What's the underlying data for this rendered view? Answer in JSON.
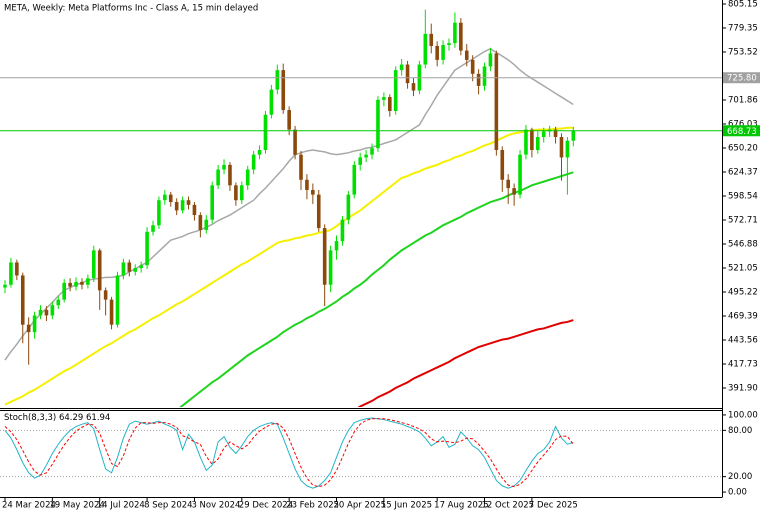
{
  "chart_data": [
    {
      "type": "candlestick",
      "title": "META, Weekly:  Meta Platforms Inc - Class A, 15 min delayed",
      "categories": [
        "24 Mar 2024",
        null,
        null,
        null,
        null,
        null,
        null,
        null,
        "19 May 2024",
        null,
        null,
        null,
        null,
        null,
        null,
        null,
        "14 Jul 2024",
        null,
        null,
        null,
        null,
        null,
        null,
        null,
        "8 Sep 2024",
        null,
        null,
        null,
        null,
        null,
        null,
        null,
        "3 Nov 2024",
        null,
        null,
        null,
        null,
        null,
        null,
        null,
        "29 Dec 2024",
        null,
        null,
        null,
        null,
        null,
        null,
        null,
        "23 Feb 2025",
        null,
        null,
        null,
        null,
        null,
        null,
        null,
        "20 Apr 2025",
        null,
        null,
        null,
        null,
        null,
        null,
        null,
        "15 Jun 2025",
        null,
        null,
        null,
        null,
        null,
        null,
        null,
        null,
        "17 Aug 2025",
        null,
        null,
        null,
        null,
        null,
        null,
        null,
        "12 Oct 2025",
        null,
        null,
        null,
        null,
        null,
        null,
        null,
        "7 Dec 2025",
        null,
        null,
        null,
        null,
        null,
        null,
        null
      ],
      "open": [
        500,
        503,
        527,
        513,
        460,
        452,
        470,
        476,
        470,
        481,
        487,
        505,
        501,
        506,
        503,
        510,
        540,
        497,
        487,
        460,
        513,
        527,
        517,
        521,
        524,
        560,
        567,
        594,
        600,
        592,
        583,
        594,
        589,
        578,
        562,
        573,
        610,
        627,
        632,
        610,
        594,
        610,
        627,
        643,
        648,
        686,
        713,
        734,
        691,
        670,
        643,
        616,
        605,
        600,
        564,
        503,
        540,
        550,
        573,
        600,
        632,
        640,
        643,
        650,
        702,
        705,
        690,
        734,
        740,
        720,
        712,
        740,
        773,
        760,
        745,
        761,
        763,
        785,
        755,
        745,
        730,
        717,
        738,
        752,
        648,
        616,
        607,
        600,
        643,
        670,
        648,
        662,
        668,
        670,
        662,
        640,
        658
      ],
      "high": [
        508,
        532,
        530,
        516,
        468,
        474,
        481,
        480,
        485,
        491,
        509,
        510,
        511,
        510,
        514,
        545,
        542,
        500,
        490,
        517,
        531,
        530,
        525,
        528,
        565,
        572,
        598,
        605,
        603,
        596,
        598,
        598,
        592,
        581,
        578,
        614,
        632,
        638,
        635,
        613,
        614,
        631,
        647,
        653,
        690,
        718,
        740,
        741,
        695,
        674,
        647,
        622,
        612,
        605,
        568,
        545,
        556,
        577,
        604,
        636,
        645,
        648,
        655,
        706,
        710,
        708,
        738,
        746,
        744,
        726,
        744,
        799,
        784,
        765,
        766,
        768,
        796,
        790,
        762,
        750,
        735,
        742,
        758,
        755,
        652,
        622,
        612,
        648,
        675,
        672,
        668,
        672,
        674,
        673,
        666,
        662,
        673
      ],
      "low": [
        494,
        500,
        508,
        440,
        417,
        445,
        466,
        464,
        466,
        477,
        484,
        496,
        497,
        498,
        499,
        506,
        476,
        470,
        455,
        457,
        509,
        512,
        513,
        516,
        520,
        556,
        563,
        589,
        587,
        578,
        580,
        584,
        572,
        554,
        558,
        569,
        606,
        622,
        604,
        588,
        590,
        605,
        622,
        638,
        644,
        682,
        708,
        687,
        664,
        638,
        605,
        595,
        590,
        560,
        480,
        495,
        530,
        545,
        568,
        596,
        626,
        635,
        638,
        646,
        695,
        684,
        686,
        728,
        714,
        706,
        708,
        736,
        752,
        738,
        740,
        755,
        758,
        750,
        738,
        722,
        708,
        712,
        733,
        642,
        603,
        590,
        588,
        596,
        638,
        640,
        644,
        656,
        662,
        655,
        615,
        600,
        652
      ],
      "close": [
        503,
        527,
        513,
        460,
        452,
        470,
        476,
        470,
        481,
        487,
        505,
        501,
        506,
        503,
        510,
        540,
        497,
        487,
        460,
        513,
        527,
        517,
        521,
        524,
        560,
        567,
        594,
        600,
        592,
        583,
        594,
        589,
        578,
        562,
        573,
        610,
        627,
        632,
        610,
        594,
        610,
        627,
        643,
        648,
        686,
        713,
        734,
        691,
        670,
        643,
        616,
        605,
        600,
        564,
        503,
        540,
        550,
        573,
        600,
        632,
        640,
        643,
        650,
        702,
        705,
        690,
        734,
        740,
        720,
        712,
        740,
        773,
        760,
        745,
        761,
        763,
        785,
        755,
        745,
        730,
        717,
        738,
        752,
        648,
        616,
        607,
        600,
        643,
        670,
        648,
        662,
        668,
        670,
        662,
        640,
        658,
        668.73
      ],
      "up_color": "#00e000",
      "down_color": "#8b4a0c",
      "overlays": [
        {
          "color": "#a8a8a8",
          "values": [
            422,
            431,
            439,
            448,
            456,
            465,
            471,
            478,
            484,
            491,
            497,
            500,
            503,
            505,
            508,
            509,
            510,
            511,
            511,
            512,
            513,
            517,
            520,
            524,
            527,
            533,
            539,
            545,
            551,
            553,
            555,
            558,
            560,
            562,
            565,
            568,
            572,
            575,
            578,
            582,
            586,
            590,
            594,
            601,
            607,
            614,
            621,
            628,
            636,
            643,
            645,
            647,
            648,
            647,
            646,
            644,
            643,
            644,
            645,
            647,
            648,
            650,
            651,
            653,
            655,
            657,
            659,
            663,
            667,
            671,
            675,
            686,
            696,
            707,
            716,
            725,
            734,
            738,
            742,
            746,
            750,
            754,
            757,
            753,
            749,
            745,
            740,
            734,
            729,
            725,
            721,
            717,
            713,
            709,
            705,
            701,
            697
          ]
        },
        {
          "color": "#f5f000",
          "values": [
            374,
            377,
            380,
            383,
            387,
            390,
            394,
            398,
            402,
            406,
            410,
            413,
            417,
            421,
            425,
            429,
            433,
            437,
            440,
            444,
            448,
            452,
            455,
            459,
            463,
            467,
            470,
            474,
            478,
            482,
            485,
            489,
            493,
            497,
            501,
            505,
            509,
            513,
            517,
            521,
            525,
            528,
            532,
            536,
            540,
            544,
            548,
            550,
            551,
            553,
            554,
            556,
            557,
            559,
            560,
            562,
            566,
            571,
            575,
            579,
            583,
            588,
            593,
            598,
            603,
            608,
            613,
            618,
            620,
            623,
            625,
            628,
            630,
            632,
            635,
            637,
            640,
            642,
            645,
            647,
            650,
            653,
            655,
            658,
            661,
            664,
            666,
            667,
            668,
            669,
            670,
            670,
            670,
            671,
            671,
            672,
            672
          ]
        },
        {
          "color": "#1ed41e",
          "values": [
            null,
            null,
            null,
            null,
            null,
            null,
            null,
            null,
            null,
            null,
            null,
            null,
            null,
            null,
            null,
            null,
            null,
            null,
            null,
            null,
            null,
            null,
            null,
            null,
            null,
            null,
            null,
            null,
            null,
            368,
            373,
            378,
            383,
            388,
            393,
            398,
            402,
            407,
            412,
            417,
            422,
            427,
            431,
            435,
            439,
            443,
            447,
            452,
            456,
            460,
            463,
            467,
            470,
            474,
            477,
            481,
            485,
            490,
            494,
            499,
            503,
            508,
            514,
            519,
            524,
            530,
            535,
            540,
            544,
            548,
            552,
            556,
            559,
            563,
            567,
            570,
            573,
            576,
            580,
            583,
            586,
            589,
            592,
            594,
            596,
            599,
            602,
            604,
            607,
            610,
            612,
            614,
            616,
            618,
            620,
            622,
            624
          ]
        },
        {
          "color": "#e00000",
          "values": [
            null,
            null,
            null,
            null,
            null,
            null,
            null,
            null,
            null,
            null,
            null,
            null,
            null,
            null,
            null,
            null,
            null,
            null,
            null,
            null,
            null,
            null,
            null,
            null,
            null,
            null,
            null,
            null,
            null,
            null,
            null,
            null,
            null,
            null,
            null,
            null,
            null,
            null,
            null,
            null,
            null,
            null,
            null,
            null,
            null,
            null,
            null,
            null,
            null,
            null,
            null,
            null,
            null,
            null,
            null,
            null,
            null,
            null,
            null,
            368,
            372,
            375,
            378,
            382,
            385,
            388,
            392,
            395,
            398,
            402,
            405,
            408,
            411,
            414,
            417,
            420,
            424,
            427,
            430,
            433,
            436,
            438,
            440,
            442,
            444,
            445,
            447,
            449,
            451,
            453,
            455,
            456,
            458,
            460,
            462,
            463,
            465
          ]
        }
      ],
      "hlines": [
        {
          "value": 725.8,
          "label": "725.80",
          "color": "#a0a0a0"
        },
        {
          "value": 668.73,
          "label": "668.73",
          "color": "#00c800"
        }
      ],
      "ylim": [
        371.45,
        809.45
      ],
      "yticks": [
        805.15,
        779.35,
        753.52,
        701.86,
        676.03,
        {
          "value": 650.2,
          "label": "650.20"
        },
        624.37,
        598.54,
        572.71,
        546.88,
        521.05,
        495.22,
        469.39,
        443.56,
        417.73,
        {
          "value": 391.9,
          "label": "391.90"
        }
      ],
      "grid": false
    },
    {
      "type": "line",
      "title": "Stoch(8,3,3)",
      "series": [
        {
          "color": "#20b4c8",
          "dash": false,
          "values": [
            80,
            70,
            55,
            38,
            25,
            18,
            22,
            35,
            50,
            62,
            72,
            80,
            85,
            88,
            90,
            82,
            55,
            30,
            25,
            45,
            70,
            88,
            92,
            90,
            88,
            90,
            92,
            88,
            85,
            80,
            55,
            75,
            65,
            45,
            28,
            35,
            65,
            72,
            58,
            50,
            60,
            72,
            80,
            85,
            88,
            90,
            88,
            70,
            50,
            30,
            15,
            8,
            5,
            8,
            15,
            25,
            45,
            65,
            80,
            90,
            93,
            95,
            96,
            95,
            94,
            92,
            90,
            88,
            85,
            82,
            78,
            70,
            60,
            65,
            72,
            58,
            62,
            78,
            70,
            60,
            55,
            45,
            30,
            15,
            8,
            5,
            8,
            15,
            28,
            40,
            50,
            55,
            65,
            85,
            70,
            62,
            64.29
          ]
        },
        {
          "color": "#ff0000",
          "dash": true,
          "values": [
            85,
            78,
            68,
            54,
            39,
            27,
            22,
            25,
            36,
            49,
            61,
            71,
            79,
            84,
            88,
            87,
            76,
            56,
            37,
            33,
            47,
            68,
            83,
            90,
            90,
            89,
            90,
            90,
            88,
            84,
            73,
            70,
            65,
            62,
            46,
            36,
            43,
            57,
            65,
            60,
            56,
            61,
            71,
            79,
            84,
            88,
            89,
            83,
            69,
            50,
            32,
            18,
            9,
            7,
            9,
            16,
            28,
            45,
            63,
            78,
            88,
            93,
            95,
            95,
            95,
            94,
            92,
            90,
            88,
            85,
            82,
            77,
            69,
            65,
            66,
            65,
            64,
            66,
            70,
            69,
            62,
            53,
            43,
            30,
            18,
            9,
            7,
            10,
            17,
            28,
            39,
            48,
            57,
            68,
            73,
            72,
            61.94
          ]
        }
      ],
      "levels": [
        80,
        20
      ],
      "ylim": [
        -6.4,
        106.4
      ],
      "yticks": [
        {
          "value": 100,
          "label": "100.00"
        },
        {
          "value": 80,
          "label": "80.00"
        },
        {
          "value": 20,
          "label": "20.00"
        },
        {
          "value": 0,
          "label": "0.00"
        }
      ]
    }
  ]
}
